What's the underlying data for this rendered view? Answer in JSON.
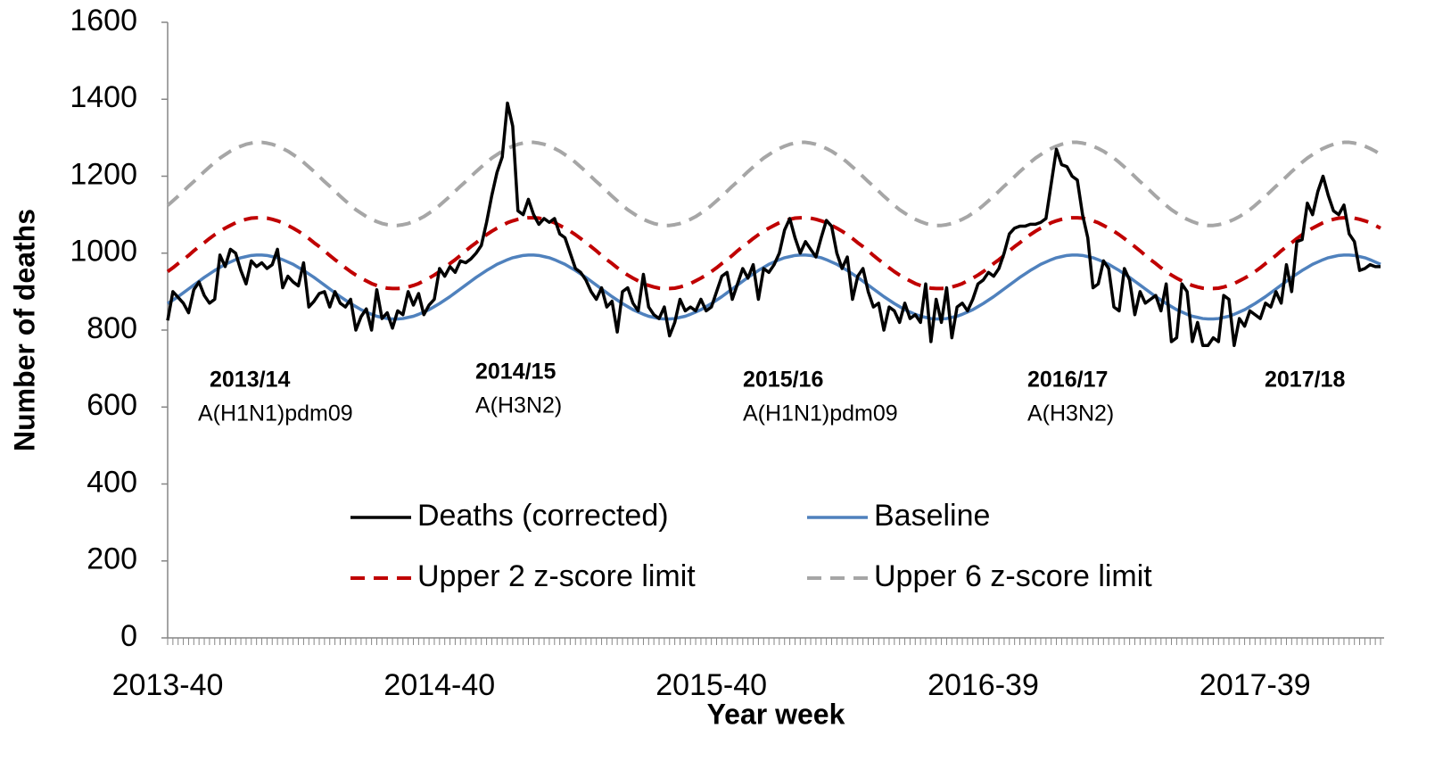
{
  "chart_data": {
    "type": "line",
    "xlabel": "Year week",
    "ylabel": "Number of deaths",
    "ylim": [
      0,
      1600
    ],
    "yticks": [
      0,
      200,
      400,
      600,
      800,
      1000,
      1200,
      1400,
      1600
    ],
    "legend": "center",
    "annotations": [
      {
        "season": "2013/14",
        "subtype": "A(H1N1)pdm09"
      },
      {
        "season": "2014/15",
        "subtype": "A(H3N2)"
      },
      {
        "season": "2015/16",
        "subtype": "A(H1N1)pdm09"
      },
      {
        "season": "2016/17",
        "subtype": "A(H3N2)"
      },
      {
        "season": "2017/18"
      }
    ],
    "categories": [
      "2013-40",
      null,
      null,
      null,
      null,
      null,
      null,
      null,
      null,
      null,
      null,
      null,
      null,
      null,
      null,
      null,
      null,
      null,
      null,
      null,
      null,
      null,
      null,
      null,
      null,
      null,
      null,
      null,
      null,
      null,
      null,
      null,
      null,
      null,
      null,
      null,
      null,
      null,
      null,
      null,
      null,
      null,
      null,
      null,
      null,
      null,
      null,
      null,
      null,
      null,
      null,
      null,
      "2014-40",
      null,
      null,
      null,
      null,
      null,
      null,
      null,
      null,
      null,
      null,
      null,
      null,
      null,
      null,
      null,
      null,
      null,
      null,
      null,
      null,
      null,
      null,
      null,
      null,
      null,
      null,
      null,
      null,
      null,
      null,
      null,
      null,
      null,
      null,
      null,
      null,
      null,
      null,
      null,
      null,
      null,
      null,
      null,
      null,
      null,
      null,
      null,
      null,
      null,
      null,
      null,
      "2015-40",
      null,
      null,
      null,
      null,
      null,
      null,
      null,
      null,
      null,
      null,
      null,
      null,
      null,
      null,
      null,
      null,
      null,
      null,
      null,
      null,
      null,
      null,
      null,
      null,
      null,
      null,
      null,
      null,
      null,
      null,
      null,
      null,
      null,
      null,
      null,
      null,
      null,
      null,
      null,
      null,
      null,
      null,
      null,
      null,
      null,
      null,
      null,
      null,
      null,
      null,
      null,
      "2016-39",
      null,
      null,
      null,
      null,
      null,
      null,
      null,
      null,
      null,
      null,
      null,
      null,
      null,
      null,
      null,
      null,
      null,
      null,
      null,
      null,
      null,
      null,
      null,
      null,
      null,
      null,
      null,
      null,
      null,
      null,
      null,
      null,
      null,
      null,
      null,
      null,
      null,
      null,
      null,
      null,
      null,
      null,
      null,
      null,
      null,
      null,
      null,
      null,
      null,
      null,
      null,
      "2017-39",
      null,
      null,
      null,
      null,
      null,
      null,
      null,
      null,
      null,
      null,
      null,
      null,
      null,
      null,
      null,
      null,
      null,
      null,
      null,
      null,
      null,
      null,
      null,
      null
    ],
    "series": [
      {
        "name": "Deaths (corrected)",
        "color": "#000000",
        "linestyle": "solid",
        "values": [
          825,
          900,
          885,
          870,
          845,
          905,
          925,
          890,
          870,
          880,
          995,
          965,
          1010,
          1000,
          955,
          920,
          980,
          965,
          975,
          960,
          970,
          1010,
          910,
          940,
          925,
          915,
          975,
          860,
          875,
          895,
          900,
          860,
          900,
          870,
          860,
          880,
          800,
          835,
          855,
          800,
          905,
          830,
          845,
          805,
          850,
          840,
          900,
          865,
          895,
          840,
          865,
          880,
          960,
          940,
          965,
          950,
          980,
          975,
          985,
          1000,
          1020,
          1080,
          1150,
          1210,
          1250,
          1390,
          1330,
          1110,
          1100,
          1140,
          1100,
          1075,
          1090,
          1080,
          1090,
          1050,
          1040,
          1000,
          960,
          950,
          930,
          900,
          880,
          910,
          860,
          875,
          795,
          900,
          910,
          870,
          850,
          945,
          860,
          840,
          830,
          860,
          785,
          820,
          880,
          850,
          860,
          850,
          880,
          850,
          860,
          900,
          940,
          950,
          880,
          920,
          960,
          935,
          970,
          880,
          960,
          950,
          970,
          1000,
          1060,
          1090,
          1040,
          1000,
          1030,
          1010,
          990,
          1040,
          1085,
          1070,
          1000,
          960,
          990,
          880,
          940,
          960,
          900,
          860,
          870,
          800,
          860,
          850,
          820,
          870,
          830,
          840,
          820,
          920,
          770,
          880,
          820,
          910,
          780,
          860,
          870,
          850,
          880,
          920,
          930,
          950,
          940,
          960,
          1000,
          1050,
          1065,
          1070,
          1070,
          1075,
          1075,
          1080,
          1090,
          1180,
          1270,
          1230,
          1225,
          1200,
          1190,
          1100,
          1040,
          910,
          920,
          980,
          960,
          860,
          850,
          960,
          930,
          840,
          900,
          870,
          880,
          890,
          850,
          920,
          770,
          780,
          920,
          900,
          770,
          820,
          760,
          760,
          780,
          770,
          890,
          880,
          760,
          830,
          810,
          850,
          840,
          830,
          870,
          860,
          900,
          870,
          970,
          900,
          1030,
          1035,
          1130,
          1100,
          1160,
          1200,
          1150,
          1110,
          1100,
          1125,
          1050,
          1030,
          955,
          960,
          970,
          965,
          965
        ]
      },
      {
        "name": "Baseline",
        "color": "#4f81bd",
        "linestyle": "solid",
        "values": [
          869,
          878,
          887,
          897,
          907,
          917,
          927,
          937,
          946,
          955,
          963,
          971,
          977,
          983,
          988,
          991,
          994,
          995,
          995,
          994,
          991,
          988,
          983,
          977,
          971,
          963,
          955,
          946,
          937,
          927,
          917,
          907,
          897,
          887,
          878,
          869,
          861,
          853,
          847,
          841,
          836,
          833,
          830,
          829,
          829,
          830,
          833,
          836,
          841,
          847,
          853,
          861,
          869,
          878,
          887,
          897,
          907,
          917,
          927,
          937,
          946,
          955,
          963,
          971,
          977,
          983,
          988,
          991,
          994,
          995,
          995,
          994,
          991,
          988,
          983,
          977,
          971,
          963,
          955,
          946,
          937,
          927,
          917,
          907,
          897,
          887,
          878,
          869,
          861,
          853,
          847,
          841,
          836,
          833,
          830,
          829,
          829,
          830,
          833,
          836,
          841,
          847,
          853,
          861,
          869,
          878,
          887,
          897,
          907,
          917,
          927,
          937,
          946,
          955,
          963,
          971,
          977,
          983,
          988,
          991,
          994,
          995,
          995,
          994,
          991,
          988,
          983,
          977,
          971,
          963,
          955,
          946,
          937,
          927,
          917,
          907,
          897,
          887,
          878,
          869,
          861,
          853,
          847,
          841,
          836,
          833,
          830,
          829,
          829,
          830,
          833,
          836,
          841,
          847,
          853,
          861,
          869,
          878,
          887,
          897,
          907,
          917,
          927,
          937,
          946,
          955,
          963,
          971,
          977,
          983,
          988,
          991,
          994,
          995,
          995,
          994,
          991,
          988,
          983,
          977,
          971,
          963,
          955,
          946,
          937,
          927,
          917,
          907,
          897,
          887,
          878,
          869,
          861,
          853,
          847,
          841,
          836,
          833,
          830,
          829,
          829,
          830,
          833,
          836,
          841,
          847,
          853,
          861,
          869,
          878,
          887,
          897,
          907,
          917,
          927,
          937,
          946,
          955,
          963,
          971,
          977,
          983,
          988,
          991,
          994,
          995,
          995,
          994,
          991,
          988,
          983,
          977,
          971
        ]
      },
      {
        "name": "Upper 2 z-score limit",
        "color": "#c00000",
        "linestyle": "dashed",
        "values": [
          952,
          962,
          973,
          983,
          994,
          1006,
          1017,
          1027,
          1038,
          1048,
          1057,
          1065,
          1072,
          1079,
          1084,
          1088,
          1091,
          1092,
          1092,
          1091,
          1088,
          1084,
          1079,
          1072,
          1065,
          1057,
          1048,
          1038,
          1027,
          1017,
          1006,
          994,
          983,
          973,
          962,
          952,
          943,
          935,
          928,
          921,
          916,
          912,
          909,
          908,
          908,
          909,
          912,
          916,
          921,
          928,
          935,
          943,
          952,
          962,
          973,
          983,
          994,
          1006,
          1017,
          1027,
          1038,
          1048,
          1057,
          1065,
          1072,
          1079,
          1084,
          1088,
          1091,
          1092,
          1092,
          1091,
          1088,
          1084,
          1079,
          1072,
          1065,
          1057,
          1048,
          1038,
          1027,
          1017,
          1006,
          994,
          983,
          973,
          962,
          952,
          943,
          935,
          928,
          921,
          916,
          912,
          909,
          908,
          908,
          909,
          912,
          916,
          921,
          928,
          935,
          943,
          952,
          962,
          973,
          983,
          994,
          1006,
          1017,
          1027,
          1038,
          1048,
          1057,
          1065,
          1072,
          1079,
          1084,
          1088,
          1091,
          1092,
          1092,
          1091,
          1088,
          1084,
          1079,
          1072,
          1065,
          1057,
          1048,
          1038,
          1027,
          1017,
          1006,
          994,
          983,
          973,
          962,
          952,
          943,
          935,
          928,
          921,
          916,
          912,
          909,
          908,
          908,
          909,
          912,
          916,
          921,
          928,
          935,
          943,
          952,
          962,
          973,
          983,
          994,
          1006,
          1017,
          1027,
          1038,
          1048,
          1057,
          1065,
          1072,
          1079,
          1084,
          1088,
          1091,
          1092,
          1092,
          1091,
          1088,
          1084,
          1079,
          1072,
          1065,
          1057,
          1048,
          1038,
          1027,
          1017,
          1006,
          994,
          983,
          973,
          962,
          952,
          943,
          935,
          928,
          921,
          916,
          912,
          909,
          908,
          908,
          909,
          912,
          916,
          921,
          928,
          935,
          943,
          952,
          962,
          973,
          983,
          994,
          1006,
          1017,
          1027,
          1038,
          1048,
          1057,
          1065,
          1072,
          1079,
          1084,
          1088,
          1091,
          1092,
          1092,
          1091,
          1088,
          1084,
          1079,
          1072,
          1065
        ]
      },
      {
        "name": "Upper 6 z-score limit",
        "color": "#a6a6a6",
        "linestyle": "dashed",
        "values": [
          1124,
          1136,
          1148,
          1161,
          1174,
          1186,
          1199,
          1212,
          1224,
          1236,
          1247,
          1256,
          1265,
          1272,
          1278,
          1283,
          1286,
          1288,
          1288,
          1286,
          1283,
          1278,
          1272,
          1265,
          1256,
          1247,
          1236,
          1224,
          1212,
          1199,
          1186,
          1174,
          1161,
          1148,
          1136,
          1124,
          1113,
          1104,
          1095,
          1088,
          1082,
          1077,
          1074,
          1072,
          1072,
          1074,
          1077,
          1082,
          1088,
          1095,
          1104,
          1113,
          1124,
          1136,
          1148,
          1161,
          1174,
          1186,
          1199,
          1212,
          1224,
          1236,
          1247,
          1256,
          1265,
          1272,
          1278,
          1283,
          1286,
          1288,
          1288,
          1286,
          1283,
          1278,
          1272,
          1265,
          1256,
          1247,
          1236,
          1224,
          1212,
          1199,
          1186,
          1174,
          1161,
          1148,
          1136,
          1124,
          1113,
          1104,
          1095,
          1088,
          1082,
          1077,
          1074,
          1072,
          1072,
          1074,
          1077,
          1082,
          1088,
          1095,
          1104,
          1113,
          1124,
          1136,
          1148,
          1161,
          1174,
          1186,
          1199,
          1212,
          1224,
          1236,
          1247,
          1256,
          1265,
          1272,
          1278,
          1283,
          1286,
          1288,
          1288,
          1286,
          1283,
          1278,
          1272,
          1265,
          1256,
          1247,
          1236,
          1224,
          1212,
          1199,
          1186,
          1174,
          1161,
          1148,
          1136,
          1124,
          1113,
          1104,
          1095,
          1088,
          1082,
          1077,
          1074,
          1072,
          1072,
          1074,
          1077,
          1082,
          1088,
          1095,
          1104,
          1113,
          1124,
          1136,
          1148,
          1161,
          1174,
          1186,
          1199,
          1212,
          1224,
          1236,
          1247,
          1256,
          1265,
          1272,
          1278,
          1283,
          1286,
          1288,
          1288,
          1286,
          1283,
          1278,
          1272,
          1265,
          1256,
          1247,
          1236,
          1224,
          1212,
          1199,
          1186,
          1174,
          1161,
          1148,
          1136,
          1124,
          1113,
          1104,
          1095,
          1088,
          1082,
          1077,
          1074,
          1072,
          1072,
          1074,
          1077,
          1082,
          1088,
          1095,
          1104,
          1113,
          1124,
          1136,
          1148,
          1161,
          1174,
          1186,
          1199,
          1212,
          1224,
          1236,
          1247,
          1256,
          1265,
          1272,
          1278,
          1283,
          1286,
          1288,
          1288,
          1286,
          1283,
          1278,
          1272,
          1265,
          1256
        ]
      }
    ]
  }
}
